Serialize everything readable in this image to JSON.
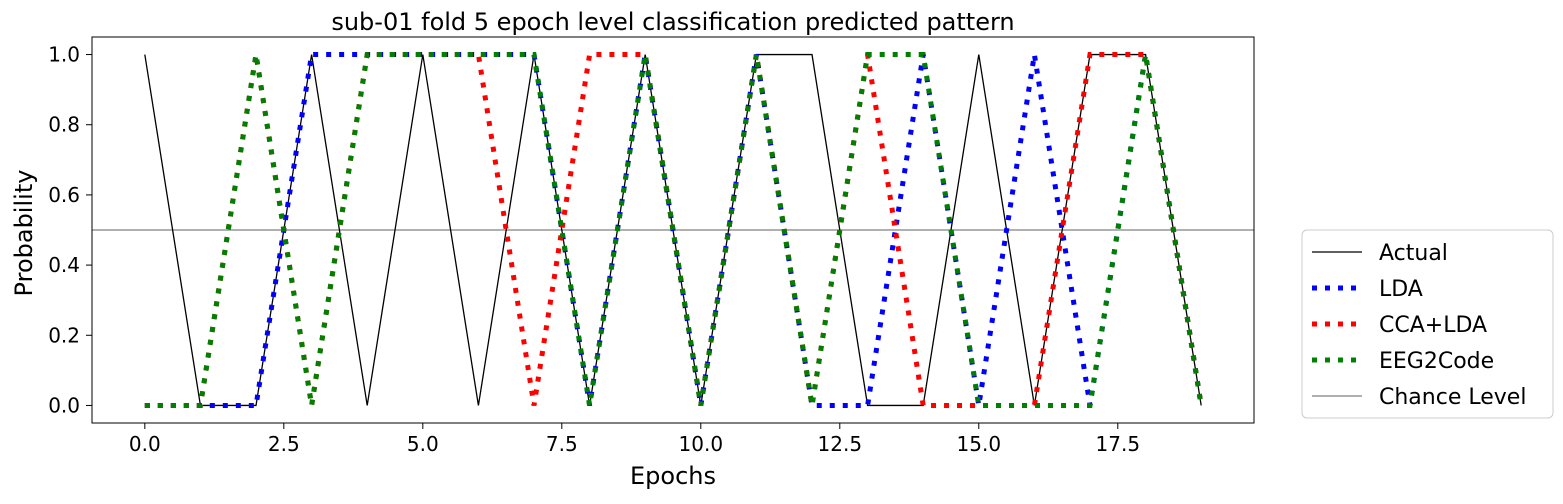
{
  "chart_data": {
    "type": "line",
    "title": "sub-01 fold 5 epoch level classification predicted pattern",
    "xlabel": "Epochs",
    "ylabel": "Probability",
    "xlim": [
      -0.95,
      19.95
    ],
    "ylim": [
      -0.05,
      1.05
    ],
    "xticks": [
      0,
      2.5,
      5,
      7.5,
      10,
      12.5,
      15,
      17.5
    ],
    "xtick_labels": [
      "0.0",
      "2.5",
      "5.0",
      "7.5",
      "10.0",
      "12.5",
      "15.0",
      "17.5"
    ],
    "yticks": [
      0,
      0.2,
      0.4,
      0.6,
      0.8,
      1.0
    ],
    "ytick_labels": [
      "0.0",
      "0.2",
      "0.4",
      "0.6",
      "0.8",
      "1.0"
    ],
    "x": [
      0,
      1,
      2,
      3,
      4,
      5,
      6,
      7,
      8,
      9,
      10,
      11,
      12,
      13,
      14,
      15,
      16,
      17,
      18,
      19
    ],
    "legend_position": "outside-right",
    "grid": false,
    "series": [
      {
        "name": "Actual",
        "color": "#000000",
        "style": "solid",
        "values": [
          1,
          0,
          0,
          1,
          0,
          1,
          0,
          1,
          0,
          1,
          0,
          1,
          1,
          0,
          0,
          1,
          0,
          1,
          1,
          0
        ]
      },
      {
        "name": "LDA",
        "color": "#0000ff",
        "style": "dotted",
        "values": [
          0,
          0,
          0,
          1,
          1,
          1,
          1,
          1,
          0,
          1,
          0,
          1,
          0,
          0,
          1,
          0,
          1,
          0,
          1,
          0
        ]
      },
      {
        "name": "CCA+LDA",
        "color": "#ff0000",
        "style": "dotted",
        "values": [
          0,
          0,
          1,
          0,
          1,
          1,
          1,
          0,
          1,
          1,
          0,
          1,
          0,
          1,
          0,
          0,
          0,
          1,
          1,
          0
        ]
      },
      {
        "name": "EEG2Code",
        "color": "#008000",
        "style": "dotted",
        "values": [
          0,
          0,
          1,
          0,
          1,
          1,
          1,
          1,
          0,
          1,
          0,
          1,
          0,
          1,
          1,
          0,
          0,
          0,
          1,
          0
        ]
      }
    ],
    "reference_lines": [
      {
        "name": "Chance Level",
        "color": "#808080",
        "y": 0.5
      }
    ]
  }
}
